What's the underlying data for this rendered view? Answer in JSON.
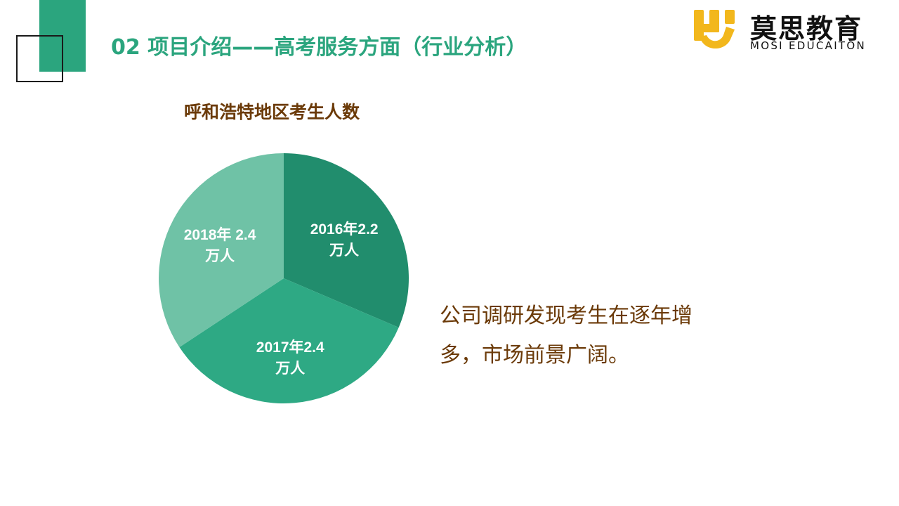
{
  "slide": {
    "title": "02 项目介绍——高考服务方面（行业分析）"
  },
  "brand": {
    "name_cn": "莫思教育",
    "name_en": "MOSI EDUCAITON",
    "logo_icon": "hs-logo-icon",
    "logo_color": "#f2b71c"
  },
  "colors": {
    "accent": "#2ba57e",
    "title_brown": "#6b3a08",
    "slice_2016": "#218d6d",
    "slice_2017": "#2ea984",
    "slice_2018": "#6fc2a6"
  },
  "chart_data": {
    "type": "pie",
    "title": "呼和浩特地区考生人数",
    "unit": "万人",
    "series": [
      {
        "categories": [
          "2016年",
          "2017年",
          "2018年"
        ],
        "values": [
          2.2,
          2.4,
          2.4
        ],
        "labels": [
          [
            "2016年2.2",
            "万人"
          ],
          [
            "2017年2.4",
            "万人"
          ],
          [
            "2018年 2.4",
            "万人"
          ]
        ],
        "colors": [
          "#218d6d",
          "#2ea984",
          "#6fc2a6"
        ]
      }
    ]
  },
  "body": {
    "lines": [
      "公司调研发现考生在逐年增",
      "多，市场前景广阔。"
    ]
  }
}
